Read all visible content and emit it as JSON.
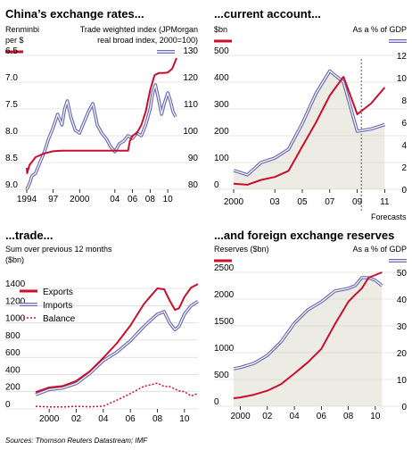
{
  "colors": {
    "red": "#c8102e",
    "blue": "#6b6bb5",
    "fill": "#ecebe4",
    "grid": "#cfcfcf"
  },
  "source": "Sources: Thomson Reuters Datastream; IMF",
  "chart_data": [
    {
      "type": "line",
      "title": "China’s exchange rates...",
      "left_label_1": "Renminbi",
      "left_label_2": "per $",
      "right_label_1": "Trade weighted index (JPMorgan",
      "right_label_2": "real broad index, 2000=100)",
      "left_ticks": [
        "6.5",
        "7.0",
        "7.5",
        "8.0",
        "8.5",
        "9.0"
      ],
      "right_ticks": [
        "130",
        "120",
        "110",
        "100",
        "90",
        "80"
      ],
      "x_ticks": [
        "1994",
        "97",
        "2000",
        "04",
        "06",
        "08",
        "10"
      ],
      "left_axis": {
        "inverted": true,
        "ylim": [
          6.5,
          9.0
        ]
      },
      "right_axis": {
        "ylim": [
          80,
          130
        ]
      },
      "series": [
        {
          "axis": "left",
          "color": "red",
          "x": [
            1994.0,
            1994.05,
            1994.3,
            1995,
            1996,
            1997,
            1998,
            1999,
            2000,
            2001,
            2002,
            2003,
            2004,
            2005.5,
            2005.7,
            2006,
            2006.5,
            2007,
            2007.5,
            2008,
            2008.5,
            2009,
            2009.5,
            2010,
            2010.5,
            2011.0
          ],
          "values": [
            8.6,
            8.7,
            8.55,
            8.4,
            8.33,
            8.29,
            8.28,
            8.28,
            8.28,
            8.28,
            8.28,
            8.28,
            8.28,
            8.28,
            8.1,
            8.0,
            7.95,
            7.8,
            7.55,
            7.15,
            6.87,
            6.83,
            6.83,
            6.82,
            6.75,
            6.55
          ]
        },
        {
          "axis": "right",
          "color": "blue",
          "x": [
            1994.0,
            1994.3,
            1994.6,
            1995,
            1995.5,
            1996,
            1996.5,
            1997,
            1997.5,
            1998,
            1998.3,
            1998.6,
            1999,
            1999.5,
            2000,
            2000.5,
            2001,
            2001.5,
            2002,
            2002.5,
            2003,
            2003.5,
            2004,
            2004.5,
            2005,
            2005.5,
            2006,
            2006.5,
            2007,
            2007.5,
            2008,
            2008.3,
            2008.6,
            2009,
            2009.3,
            2009.6,
            2010,
            2010.3,
            2010.6,
            2010.9
          ],
          "values": [
            80,
            82,
            85,
            86,
            90,
            94,
            99,
            103,
            108,
            104,
            110,
            113,
            107,
            102,
            101,
            105,
            109,
            112,
            104,
            101,
            99,
            96,
            94,
            97,
            98,
            100,
            99,
            101,
            100,
            104,
            110,
            116,
            119,
            113,
            108,
            112,
            116,
            113,
            109,
            107
          ]
        }
      ]
    },
    {
      "type": "line",
      "title": "...current account...",
      "left_label": "$bn",
      "right_label": "As a % of GDP",
      "forecast_label": "Forecasts",
      "left_ticks": [
        "500",
        "400",
        "300",
        "200",
        "100",
        "0"
      ],
      "right_ticks": [
        "12",
        "10",
        "8",
        "6",
        "4",
        "2",
        "0"
      ],
      "x_ticks": [
        "2000",
        "03",
        "05",
        "07",
        "09",
        "11"
      ],
      "left_axis": {
        "ylim": [
          0,
          500
        ]
      },
      "right_axis": {
        "ylim": [
          0,
          12
        ]
      },
      "series": [
        {
          "axis": "left",
          "color": "red",
          "x": [
            2000,
            2001,
            2002,
            2003,
            2004,
            2005,
            2006,
            2007,
            2008,
            2009,
            2010,
            2011
          ],
          "values": [
            21,
            17,
            35,
            46,
            69,
            160,
            250,
            350,
            420,
            280,
            320,
            380
          ]
        },
        {
          "axis": "right",
          "color": "blue",
          "x": [
            2000,
            2001,
            2002,
            2003,
            2004,
            2005,
            2006,
            2007,
            2008,
            2009,
            2010,
            2011
          ],
          "values": [
            1.7,
            1.3,
            2.4,
            2.8,
            3.6,
            5.9,
            8.6,
            10.6,
            9.6,
            5.2,
            5.4,
            5.8
          ]
        }
      ]
    },
    {
      "type": "line",
      "title": "...trade...",
      "subtitle_1": "Sum over previous 12 months",
      "subtitle_2": "($bn)",
      "left_ticks": [
        "1400",
        "1200",
        "1000",
        "800",
        "600",
        "400",
        "200",
        "0"
      ],
      "x_ticks": [
        "2000",
        "02",
        "04",
        "06",
        "08",
        "10"
      ],
      "ylim": [
        0,
        1400
      ],
      "legend": [
        "Exports",
        "Imports",
        "Balance"
      ],
      "series": [
        {
          "name": "Exports",
          "color": "red",
          "x": [
            1999,
            2000,
            2001,
            2002,
            2003,
            2004,
            2005,
            2006,
            2007,
            2007.5,
            2008,
            2008.5,
            2008.9,
            2009.3,
            2009.6,
            2010,
            2010.5,
            2011.0
          ],
          "values": [
            195,
            249,
            266,
            325,
            438,
            593,
            762,
            969,
            1218,
            1310,
            1400,
            1390,
            1260,
            1150,
            1170,
            1300,
            1410,
            1450
          ]
        },
        {
          "name": "Imports",
          "color": "blue",
          "x": [
            1999,
            2000,
            2001,
            2002,
            2003,
            2004,
            2005,
            2006,
            2007,
            2007.5,
            2008,
            2008.5,
            2008.9,
            2009.3,
            2009.6,
            2010,
            2010.5,
            2011.0
          ],
          "values": [
            165,
            225,
            243,
            295,
            413,
            561,
            660,
            791,
            956,
            1030,
            1100,
            1130,
            1000,
            920,
            960,
            1100,
            1200,
            1250
          ]
        },
        {
          "name": "Balance",
          "color": "red",
          "dashed": true,
          "x": [
            1999,
            2000,
            2001,
            2002,
            2003,
            2004,
            2005,
            2006,
            2007,
            2007.5,
            2008,
            2008.5,
            2008.9,
            2009.3,
            2009.6,
            2010,
            2010.5,
            2011.0
          ],
          "values": [
            30,
            24,
            23,
            30,
            25,
            32,
            102,
            178,
            262,
            280,
            300,
            260,
            260,
            230,
            210,
            200,
            150,
            180
          ]
        }
      ]
    },
    {
      "type": "line",
      "title": "...and foreign exchange reserves",
      "left_label": "Reserves ($bn)",
      "right_label": "As a % of GDP",
      "left_ticks": [
        "2500",
        "2000",
        "1500",
        "1000",
        "500",
        "0"
      ],
      "right_ticks": [
        "50",
        "40",
        "30",
        "20",
        "10",
        "0"
      ],
      "x_ticks": [
        "2000",
        "02",
        "04",
        "06",
        "08",
        "10"
      ],
      "left_axis": {
        "ylim": [
          0,
          2500
        ]
      },
      "right_axis": {
        "ylim": [
          0,
          50
        ]
      },
      "series": [
        {
          "axis": "left",
          "color": "red",
          "x": [
            1999.5,
            2000,
            2001,
            2002,
            2003,
            2004,
            2005,
            2006,
            2007,
            2008,
            2008.5,
            2009,
            2009.5,
            2010,
            2010.5
          ],
          "values": [
            150,
            165,
            215,
            290,
            410,
            610,
            820,
            1070,
            1530,
            1950,
            2080,
            2200,
            2400,
            2450,
            2500
          ]
        },
        {
          "axis": "right",
          "color": "blue",
          "x": [
            1999.5,
            2000,
            2001,
            2002,
            2003,
            2004,
            2005,
            2006,
            2007,
            2008,
            2008.5,
            2009,
            2009.5,
            2010,
            2010.5
          ],
          "values": [
            14,
            14.5,
            16,
            19,
            24,
            31,
            36,
            39,
            43,
            44,
            45,
            48,
            48,
            47,
            45
          ]
        }
      ]
    }
  ]
}
